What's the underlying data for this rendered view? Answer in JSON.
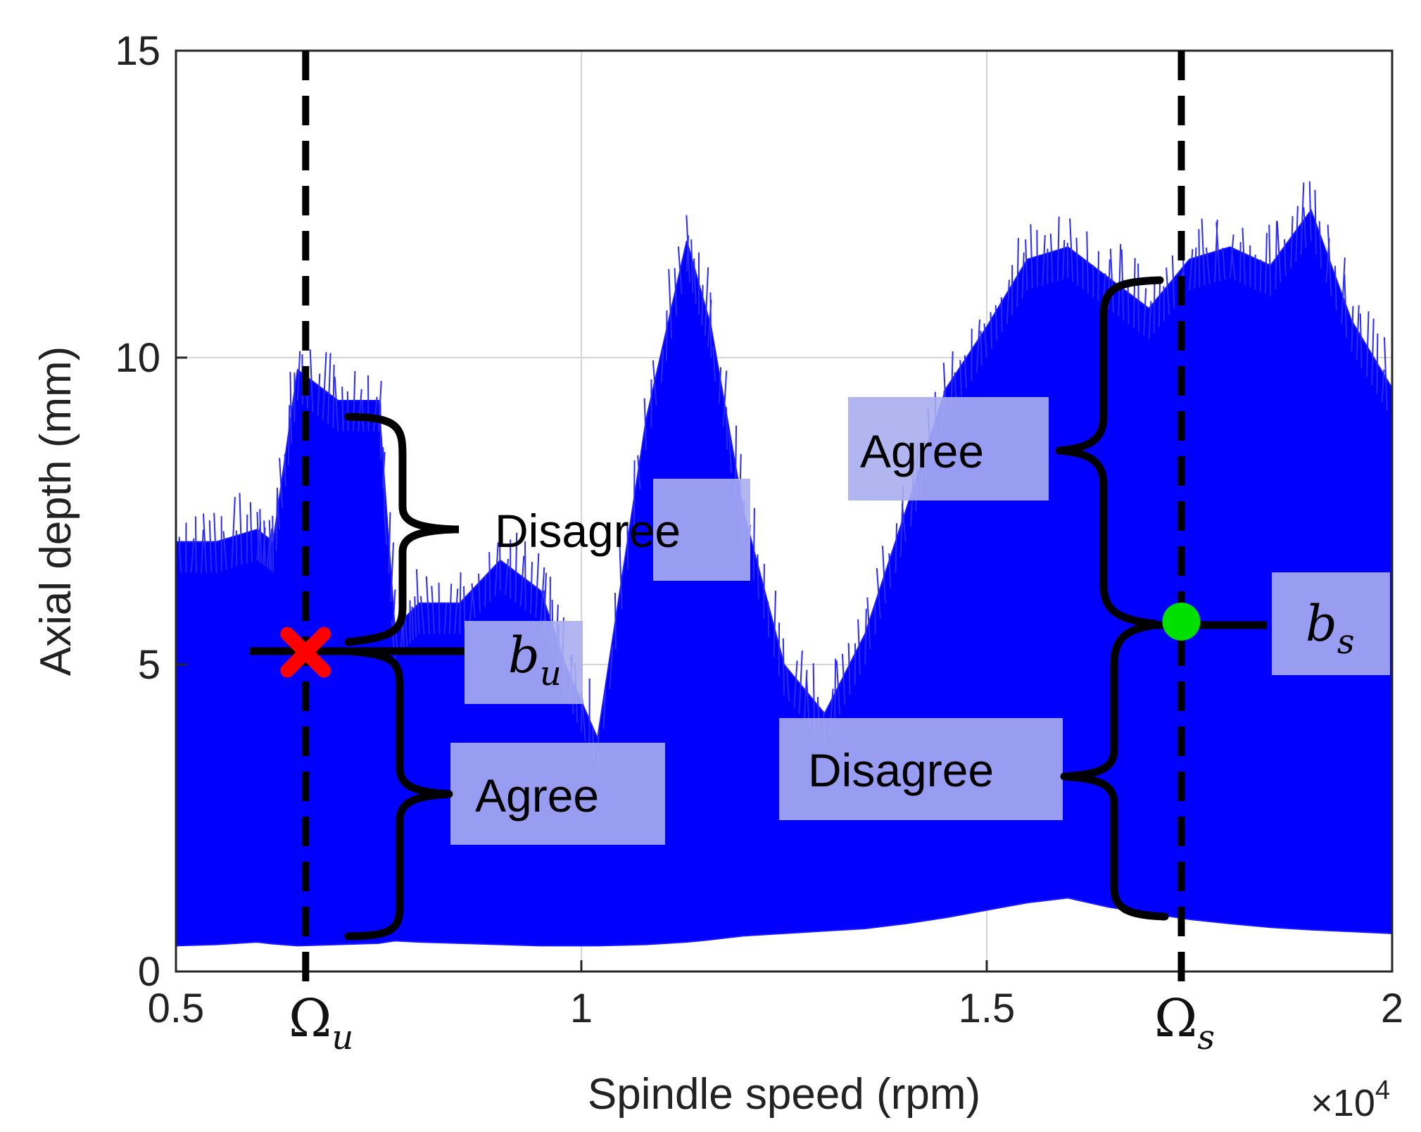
{
  "chart_data": {
    "type": "line",
    "title": "",
    "xlabel": "Spindle speed (rpm)",
    "ylabel": "Axial depth (mm)",
    "x_multiplier": "×10^4",
    "xlim": [
      0.5,
      2
    ],
    "ylim": [
      0,
      15
    ],
    "xticks": [
      0.5,
      1,
      1.5,
      2
    ],
    "xtick_labels": [
      "0.5",
      "1",
      "1.5",
      "2"
    ],
    "yticks": [
      0,
      5,
      10,
      15
    ],
    "ytick_labels": [
      "0",
      "5",
      "10",
      "15"
    ],
    "grid": true,
    "series_color": "#0000ff",
    "envelope": {
      "x": [
        0.5,
        0.55,
        0.6,
        0.62,
        0.65,
        0.7,
        0.75,
        0.77,
        0.8,
        0.85,
        0.9,
        0.95,
        0.98,
        1.02,
        1.08,
        1.13,
        1.16,
        1.2,
        1.25,
        1.3,
        1.35,
        1.4,
        1.45,
        1.5,
        1.55,
        1.6,
        1.65,
        1.7,
        1.75,
        1.8,
        1.85,
        1.9,
        1.95,
        2.0
      ],
      "upper": [
        7.0,
        7.0,
        7.2,
        7.0,
        9.8,
        9.3,
        9.3,
        5.6,
        6.0,
        6.0,
        6.7,
        6.2,
        5.0,
        3.8,
        9.0,
        11.9,
        10.5,
        7.5,
        5.0,
        4.2,
        5.5,
        7.5,
        9.5,
        10.5,
        11.6,
        11.8,
        11.3,
        10.8,
        11.6,
        11.8,
        11.5,
        12.4,
        10.6,
        9.5
      ],
      "lower": [
        0.42,
        0.44,
        0.48,
        0.45,
        0.42,
        0.44,
        0.46,
        0.5,
        0.48,
        0.46,
        0.44,
        0.42,
        0.42,
        0.42,
        0.44,
        0.48,
        0.52,
        0.58,
        0.62,
        0.66,
        0.7,
        0.78,
        0.88,
        1.0,
        1.12,
        1.2,
        1.05,
        0.95,
        0.85,
        0.78,
        0.72,
        0.68,
        0.65,
        0.62
      ]
    },
    "annotations": {
      "omega_u": {
        "symbol": "Ω",
        "sub": "u",
        "x": 0.66
      },
      "omega_s": {
        "symbol": "Ω",
        "sub": "s",
        "x": 1.74
      },
      "b_u_point": {
        "x": 0.66,
        "y": 5.2,
        "marker": "red-x",
        "color": "#ff0000"
      },
      "b_s_point": {
        "x": 1.74,
        "y": 5.7,
        "marker": "green-dot",
        "color": "#00e000"
      },
      "b_u_label": {
        "b": "b",
        "sub": "u"
      },
      "b_s_label": {
        "b": "b",
        "sub": "s"
      },
      "text_boxes": [
        "Disagree",
        "Agree",
        "Agree",
        "Disagree"
      ]
    }
  }
}
